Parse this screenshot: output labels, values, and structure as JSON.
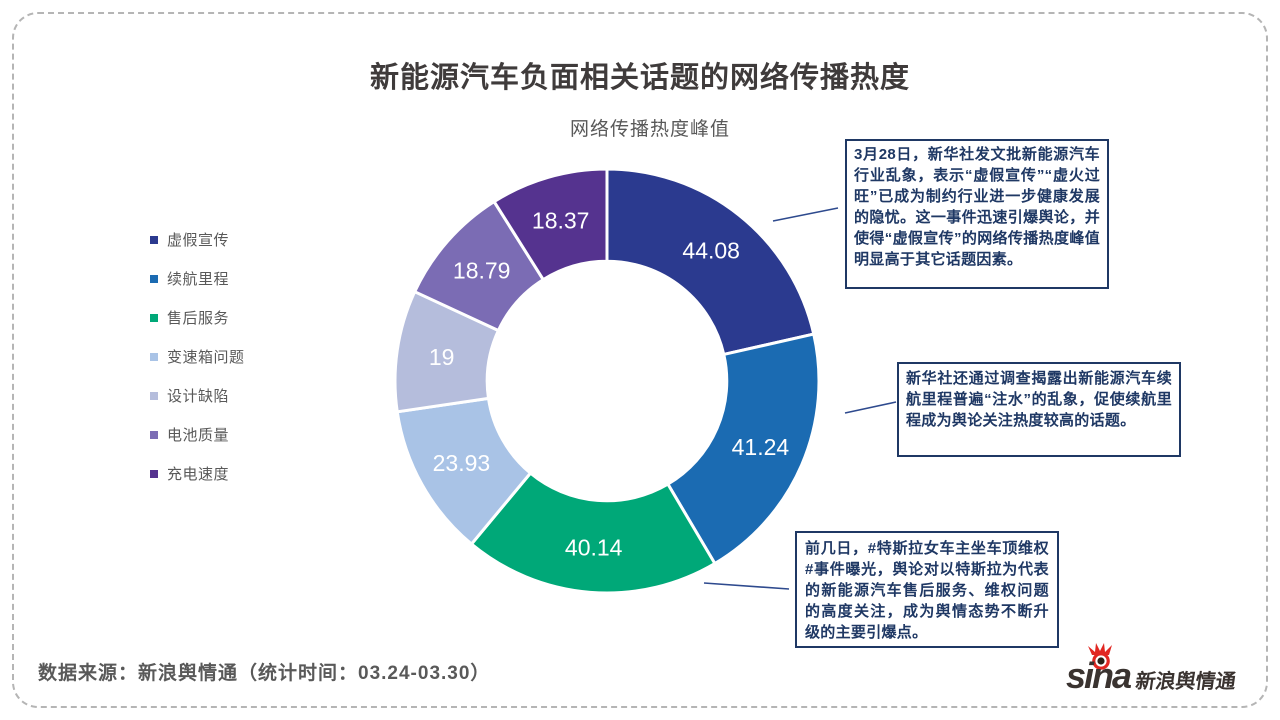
{
  "page": {
    "title": "新能源汽车负面相关话题的网络传播热度",
    "subtitle": "网络传播热度峰值",
    "source_note": "数据来源：新浪舆情通（统计时间：03.24-03.30）"
  },
  "logo": {
    "brand": "sina",
    "brand_suffix": "新浪舆情通",
    "red": "#e12722",
    "dark": "#3a3330"
  },
  "legend": {
    "items": [
      {
        "label": "虚假宣传",
        "color": "#2b3a8f"
      },
      {
        "label": "续航里程",
        "color": "#1b6bb2"
      },
      {
        "label": "售后服务",
        "color": "#00a878"
      },
      {
        "label": "变速箱问题",
        "color": "#a9c3e6"
      },
      {
        "label": "设计缺陷",
        "color": "#b5bddc"
      },
      {
        "label": "电池质量",
        "color": "#7b6cb4"
      },
      {
        "label": "充电速度",
        "color": "#55338f"
      }
    ]
  },
  "chart_data": {
    "type": "pie",
    "subtype": "donut",
    "title": "网络传播热度峰值",
    "categories": [
      "虚假宣传",
      "续航里程",
      "售后服务",
      "变速箱问题",
      "设计缺陷",
      "电池质量",
      "充电速度"
    ],
    "values": [
      44.08,
      41.24,
      40.14,
      23.93,
      19,
      18.79,
      18.37
    ],
    "labels": [
      "44.08",
      "41.24",
      "40.14",
      "23.93",
      "19",
      "18.79",
      "18.37"
    ],
    "colors": [
      "#2b3a8f",
      "#1b6bb2",
      "#00a878",
      "#a9c3e6",
      "#b5bddc",
      "#7b6cb4",
      "#55338f"
    ],
    "start_angle_deg": 0,
    "direction": "clockwise",
    "inner_radius_ratio": 0.565,
    "gap_stroke": "#ffffff",
    "label_color": "#ffffff",
    "legend_position": "left"
  },
  "annotations": [
    {
      "text": "3月28日，新华社发文批新能源汽车行业乱象，表示“虚假宣传”“虚火过旺”已成为制约行业进一步健康发展的隐忧。这一事件迅速引爆舆论，并使得“虚假宣传”的网络传播热度峰值明显高于其它话题因素。"
    },
    {
      "text": "新华社还通过调查揭露出新能源汽车续航里程普遍“注水”的乱象，促使续航里程成为舆论关注热度较高的话题。"
    },
    {
      "text": "前几日，#特斯拉女车主坐车顶维权#事件曝光，舆论对以特斯拉为代表的新能源汽车售后服务、维权问题的高度关注，成为舆情态势不断升级的主要引爆点。"
    }
  ]
}
